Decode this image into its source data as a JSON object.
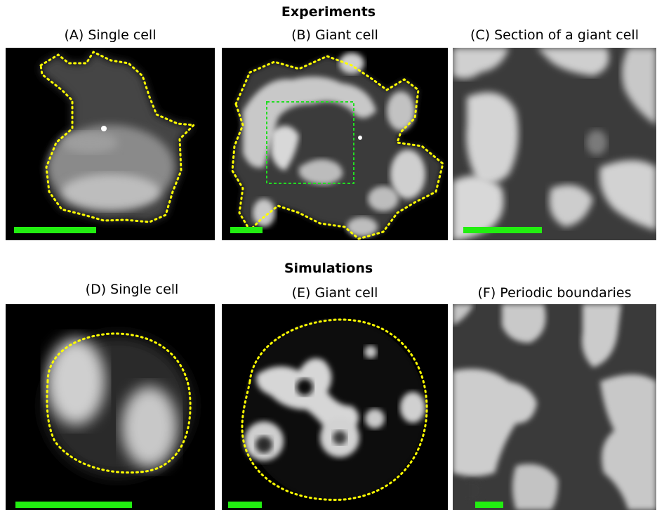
{
  "sections": {
    "experiments": "Experiments",
    "simulations": "Simulations"
  },
  "panels": {
    "a": "(A) Single cell",
    "b": "(B) Giant cell",
    "c": "(C) Section of a giant cell",
    "d": "(D) Single cell",
    "e": "(E) Giant cell",
    "f": "(F) Periodic boundaries"
  },
  "colors": {
    "background": "#000000",
    "outline": "#ffff00",
    "roi_box": "#22dd22",
    "scale_bar": "#22ee11"
  }
}
